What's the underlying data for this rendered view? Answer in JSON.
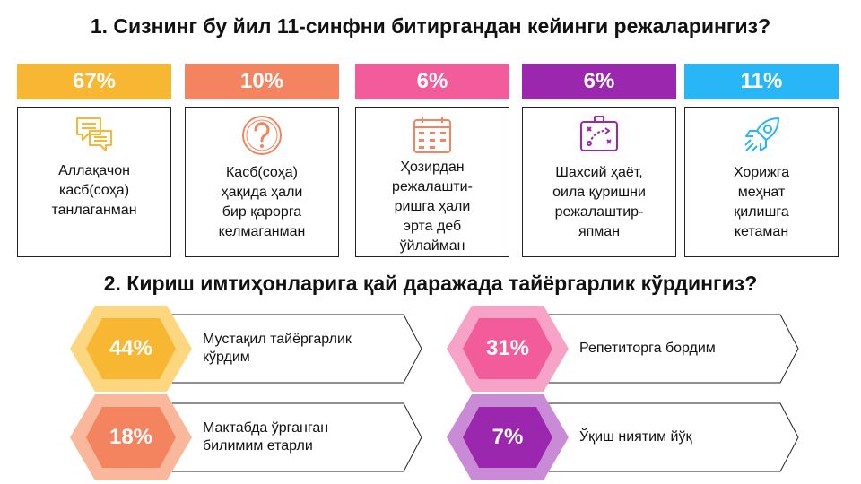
{
  "q1": {
    "title": "1. Сизнинг бу йил 11-синфни битиргандан кейинги режаларингиз?",
    "cards": [
      {
        "pct": "67%",
        "color": "#f7b733",
        "icon": "chat-bubbles-icon",
        "lines": [
          "Аллақачон",
          "касб(соҳа)",
          "танлаганман"
        ]
      },
      {
        "pct": "10%",
        "color": "#f4845f",
        "icon": "question-mark-icon",
        "lines": [
          "Касб(соҳа)",
          "ҳақида ҳали",
          "бир қарорга",
          "келмаганман"
        ]
      },
      {
        "pct": "6%",
        "color": "#f25c9a",
        "icon": "calendar-icon",
        "lines": [
          "Ҳозирдан",
          "режалашти-",
          "ришга ҳали",
          "эрта деб",
          "ўйлайман"
        ]
      },
      {
        "pct": "6%",
        "color": "#9b27af",
        "icon": "strategy-board-icon",
        "lines": [
          "Шахсий ҳаёт,",
          "оила қуришни",
          "режалаштир-",
          "япман"
        ]
      },
      {
        "pct": "11%",
        "color": "#29b6f6",
        "icon": "rocket-icon",
        "lines": [
          "Хорижга",
          "меҳнат",
          "қилишга",
          "кетаман"
        ]
      }
    ]
  },
  "q2": {
    "title": "2. Кириш имтиҳонларига қай даражада тайёргарлик кўрдингиз?",
    "answers": [
      {
        "pct": "44%",
        "outer": "#fcd77f",
        "inner": "#f7b733",
        "lines": [
          "Мустақил тайёргарлик",
          "кўрдим"
        ]
      },
      {
        "pct": "31%",
        "outer": "#f7a3c8",
        "inner": "#f25c9a",
        "lines": [
          "Репетиторга бордим"
        ]
      },
      {
        "pct": "18%",
        "outer": "#f9b79c",
        "inner": "#f4845f",
        "lines": [
          "Мактабда ўрганган",
          "билимим етарли"
        ]
      },
      {
        "pct": "7%",
        "outer": "#c98bd6",
        "inner": "#9b27af",
        "lines": [
          "Ўқиш ниятим йўқ"
        ]
      }
    ]
  }
}
